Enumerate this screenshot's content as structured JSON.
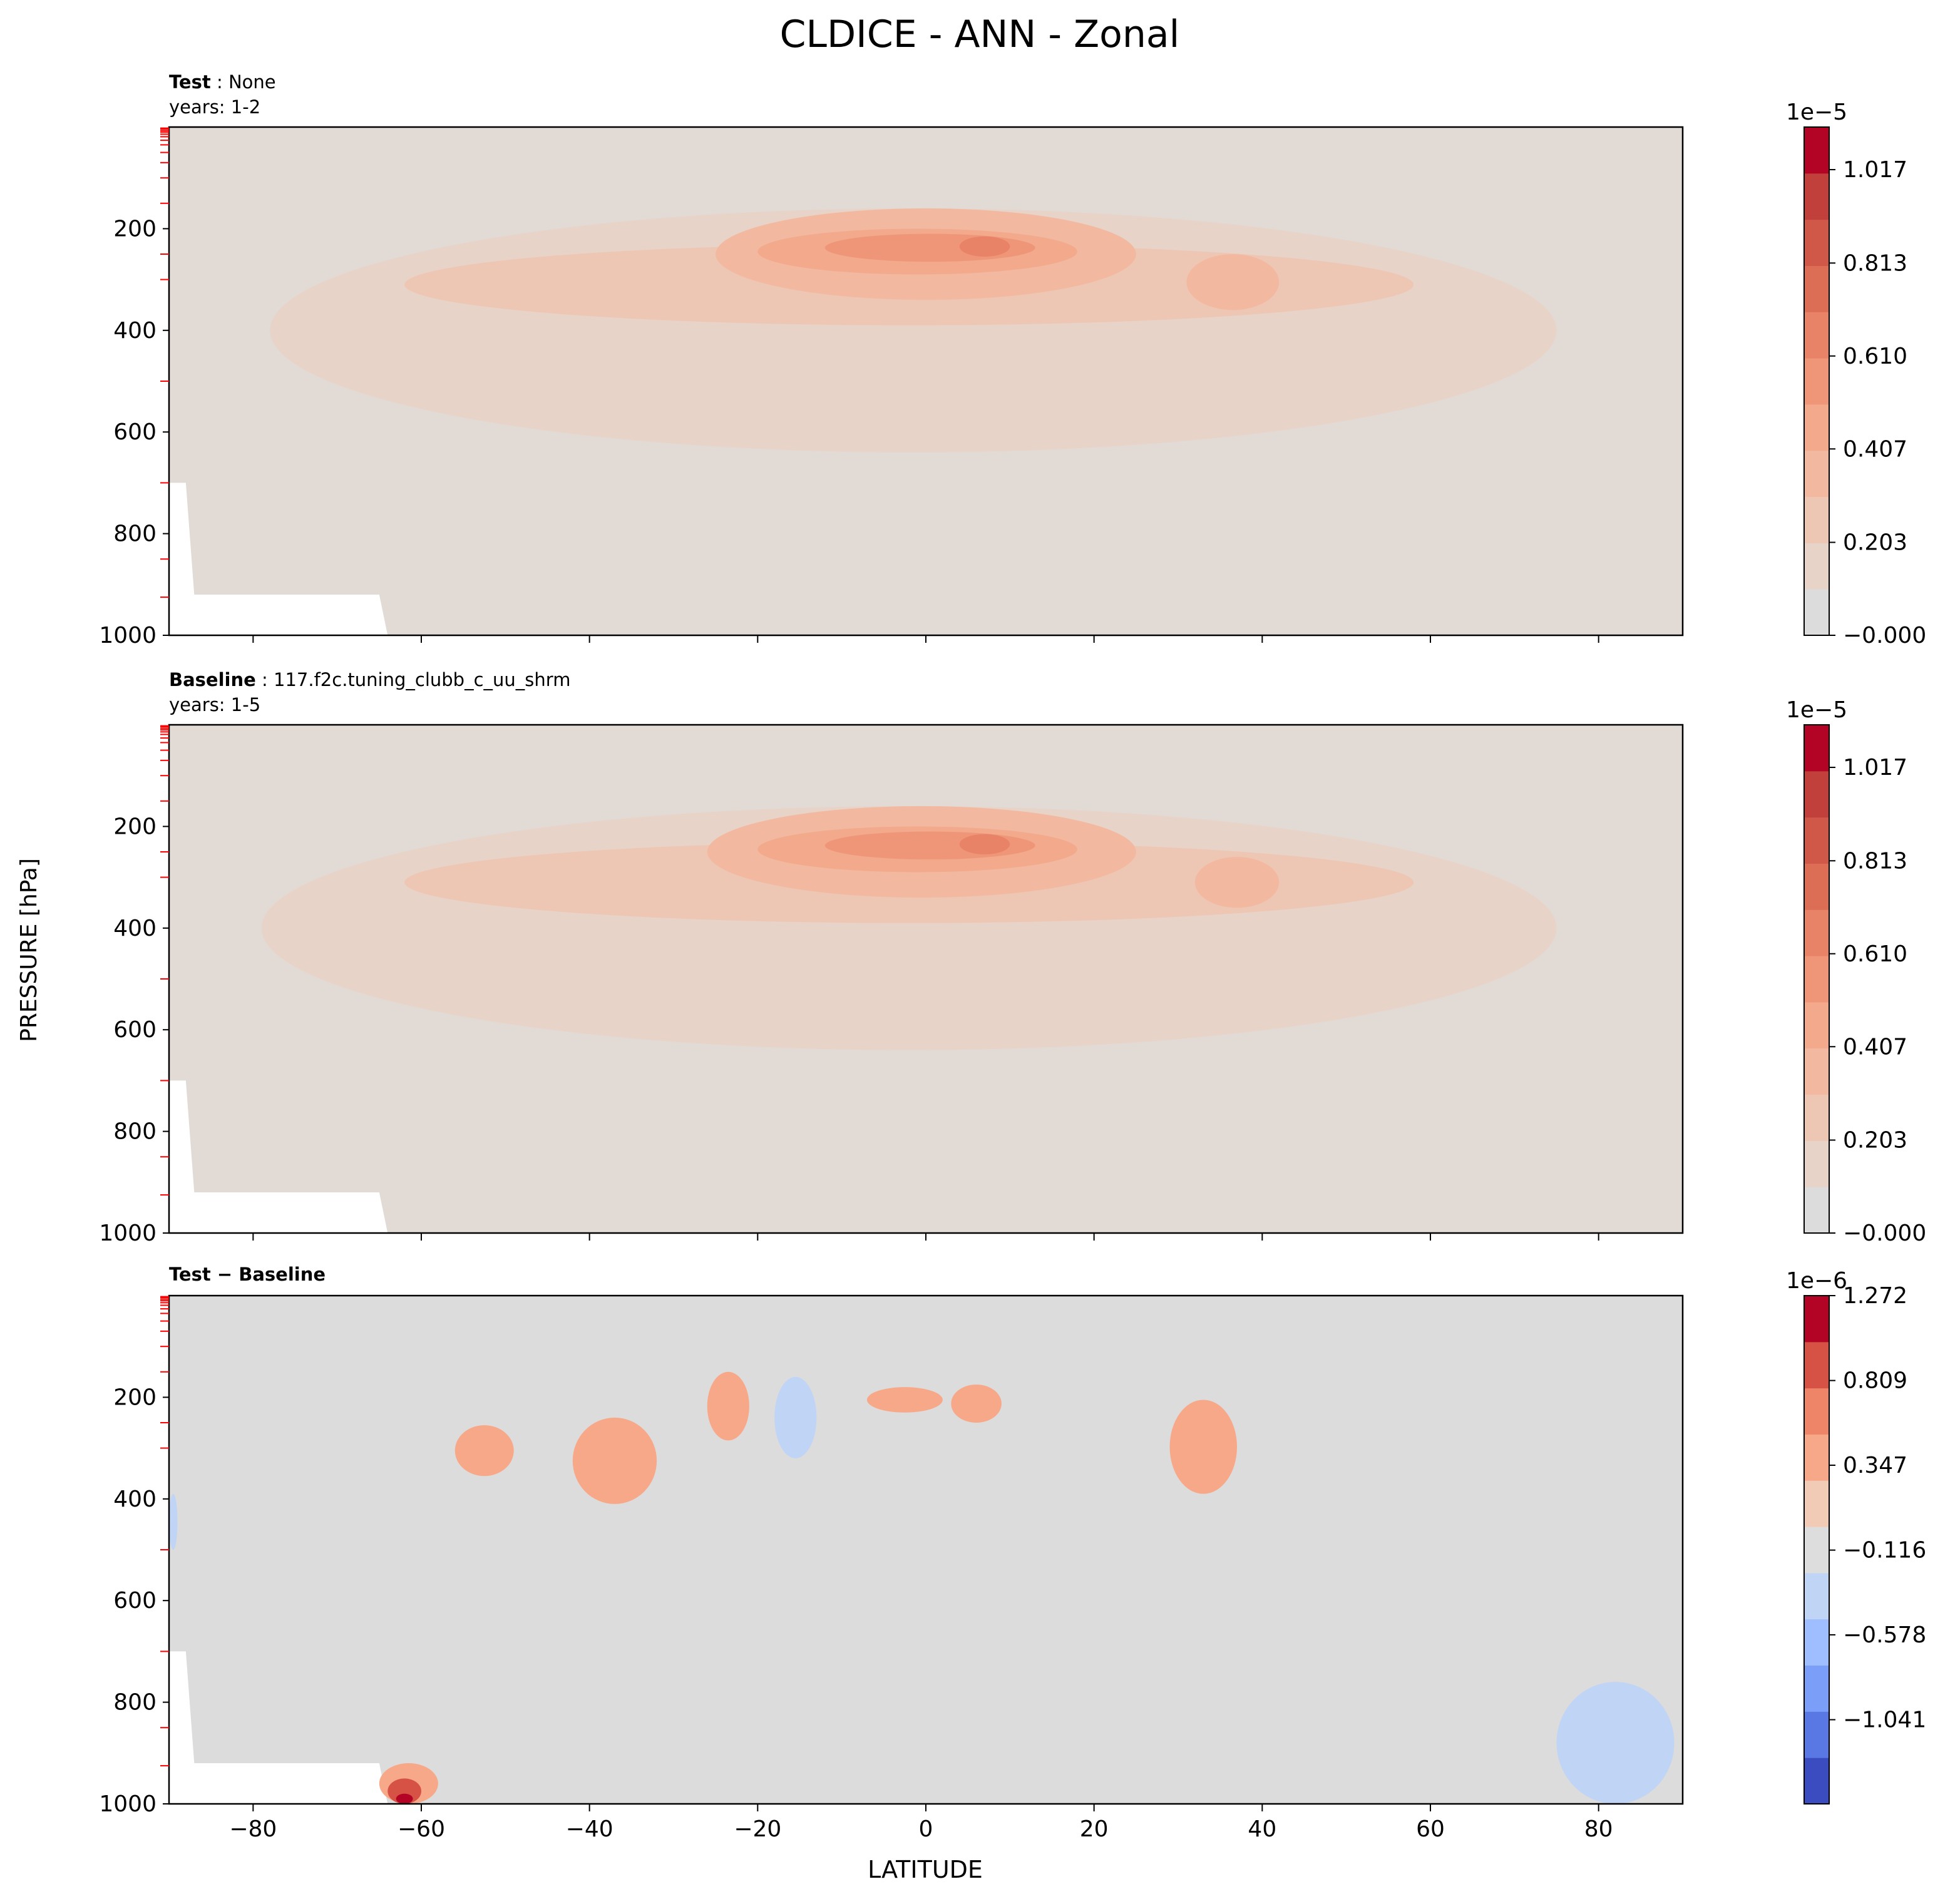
{
  "figure": {
    "title": "CLDICE - ANN - Zonal",
    "ylabel": "PRESSURE [hPa]",
    "xlabel": "LATITUDE"
  },
  "chart_data": [
    {
      "type": "heatmap",
      "panel": "test",
      "title_bold": "Test",
      "title_rest": ": None",
      "subtitle": "years: 1-2",
      "x_label": "LATITUDE",
      "y_label": "PRESSURE [hPa]",
      "xlim": [
        -90,
        90
      ],
      "ylim": [
        1000,
        0
      ],
      "x_ticks": [
        -80,
        -60,
        -40,
        -20,
        0,
        20,
        40,
        60,
        80
      ],
      "y_ticks": [
        200,
        400,
        600,
        800,
        1000
      ],
      "x_tick_labels_visible": false,
      "colorbar": {
        "exponent": "1e−5",
        "ticks": [
          -0.0,
          0.203,
          0.407,
          0.61,
          0.813,
          1.017
        ],
        "tick_labels": [
          "−0.000",
          "0.203",
          "0.407",
          "0.610",
          "0.813",
          "1.017"
        ],
        "range": [
          0,
          1.11
        ],
        "n_levels": 11,
        "colormap": "coolwarm-upper"
      },
      "regions": [
        {
          "name": "upper-tropospheric ice cloud band",
          "level": 1,
          "lat": [
            -78,
            75
          ],
          "pressure": [
            160,
            640
          ]
        },
        {
          "name": "cloud band",
          "level": 2,
          "lat": [
            -62,
            58
          ],
          "pressure": [
            230,
            390
          ]
        },
        {
          "name": "cloud core",
          "level": 3,
          "lat": [
            -25,
            25
          ],
          "pressure": [
            160,
            340
          ]
        },
        {
          "name": "cloud core",
          "level": 4,
          "lat": [
            -20,
            18
          ],
          "pressure": [
            200,
            290
          ]
        },
        {
          "name": "cloud core maximum",
          "level": 5,
          "lat": [
            -12,
            13
          ],
          "pressure": [
            210,
            265
          ]
        },
        {
          "name": "cloud core maximum",
          "level": 6,
          "lat": [
            4,
            10
          ],
          "pressure": [
            215,
            255
          ]
        },
        {
          "name": "northern mid-latitude lobe",
          "level": 3,
          "lat": [
            31,
            42
          ],
          "pressure": [
            250,
            360
          ]
        }
      ]
    },
    {
      "type": "heatmap",
      "panel": "baseline",
      "title_bold": "Baseline",
      "title_rest": ": 117.f2c.tuning_clubb_c_uu_shrm",
      "subtitle": "years: 1-5",
      "x_label": "LATITUDE",
      "y_label": "PRESSURE [hPa]",
      "xlim": [
        -90,
        90
      ],
      "ylim": [
        1000,
        0
      ],
      "x_ticks": [
        -80,
        -60,
        -40,
        -20,
        0,
        20,
        40,
        60,
        80
      ],
      "y_ticks": [
        200,
        400,
        600,
        800,
        1000
      ],
      "x_tick_labels_visible": false,
      "colorbar": {
        "exponent": "1e−5",
        "ticks": [
          -0.0,
          0.203,
          0.407,
          0.61,
          0.813,
          1.017
        ],
        "tick_labels": [
          "−0.000",
          "0.203",
          "0.407",
          "0.610",
          "0.813",
          "1.017"
        ],
        "range": [
          0,
          1.11
        ],
        "n_levels": 11,
        "colormap": "coolwarm-upper"
      },
      "regions": [
        {
          "name": "upper-tropospheric ice cloud band",
          "level": 1,
          "lat": [
            -79,
            75
          ],
          "pressure": [
            160,
            640
          ]
        },
        {
          "name": "cloud band",
          "level": 2,
          "lat": [
            -62,
            58
          ],
          "pressure": [
            230,
            390
          ]
        },
        {
          "name": "cloud core",
          "level": 3,
          "lat": [
            -26,
            25
          ],
          "pressure": [
            160,
            340
          ]
        },
        {
          "name": "cloud core",
          "level": 4,
          "lat": [
            -20,
            18
          ],
          "pressure": [
            200,
            290
          ]
        },
        {
          "name": "cloud core maximum",
          "level": 5,
          "lat": [
            -12,
            13
          ],
          "pressure": [
            210,
            265
          ]
        },
        {
          "name": "cloud core maximum",
          "level": 6,
          "lat": [
            4,
            10
          ],
          "pressure": [
            215,
            255
          ]
        },
        {
          "name": "northern mid-latitude lobe",
          "level": 3,
          "lat": [
            32,
            42
          ],
          "pressure": [
            260,
            360
          ]
        }
      ]
    },
    {
      "type": "heatmap",
      "panel": "difference",
      "title_bold": "Test − Baseline",
      "title_rest": "",
      "subtitle": "",
      "x_label": "LATITUDE",
      "y_label": "PRESSURE [hPa]",
      "xlim": [
        -90,
        90
      ],
      "ylim": [
        1000,
        0
      ],
      "x_ticks": [
        -80,
        -60,
        -40,
        -20,
        0,
        20,
        40,
        60,
        80
      ],
      "y_ticks": [
        200,
        400,
        600,
        800,
        1000
      ],
      "x_tick_labels_visible": true,
      "colorbar": {
        "exponent": "1e−6",
        "ticks": [
          -1.041,
          -0.578,
          -0.116,
          0.347,
          0.809,
          1.272
        ],
        "tick_labels": [
          "−1.041",
          "−0.578",
          "−0.116",
          "0.347",
          "0.809",
          "1.272"
        ],
        "range": [
          -1.5,
          1.272
        ],
        "n_levels": 12,
        "colormap": "coolwarm"
      },
      "regions": [
        {
          "name": "positive anomaly",
          "value": 0.45,
          "lat": [
            -56,
            -49
          ],
          "pressure": [
            255,
            355
          ]
        },
        {
          "name": "positive anomaly",
          "value": 0.45,
          "lat": [
            -42,
            -32
          ],
          "pressure": [
            240,
            410
          ]
        },
        {
          "name": "positive anomaly",
          "value": 0.45,
          "lat": [
            -26,
            -21
          ],
          "pressure": [
            150,
            285
          ]
        },
        {
          "name": "negative anomaly",
          "value": -0.35,
          "lat": [
            -18,
            -13
          ],
          "pressure": [
            160,
            320
          ]
        },
        {
          "name": "positive anomaly",
          "value": 0.45,
          "lat": [
            -7,
            2
          ],
          "pressure": [
            180,
            230
          ]
        },
        {
          "name": "positive anomaly",
          "value": 0.45,
          "lat": [
            3,
            9
          ],
          "pressure": [
            175,
            250
          ]
        },
        {
          "name": "positive anomaly",
          "value": 0.45,
          "lat": [
            29,
            37
          ],
          "pressure": [
            205,
            390
          ]
        },
        {
          "name": "negative anomaly",
          "value": -0.35,
          "lat": [
            75,
            89
          ],
          "pressure": [
            760,
            1000
          ]
        },
        {
          "name": "negative anomaly",
          "value": -0.35,
          "lat": [
            -90,
            -89
          ],
          "pressure": [
            390,
            500
          ]
        },
        {
          "name": "positive anomaly",
          "value": 0.45,
          "lat": [
            -65,
            -58
          ],
          "pressure": [
            920,
            1000
          ]
        },
        {
          "name": "positive anomaly",
          "value": 0.9,
          "lat": [
            -64,
            -60
          ],
          "pressure": [
            950,
            1000
          ]
        },
        {
          "name": "positive anomaly",
          "value": 1.3,
          "lat": [
            -63,
            -61
          ],
          "pressure": [
            980,
            1000
          ]
        }
      ]
    }
  ]
}
